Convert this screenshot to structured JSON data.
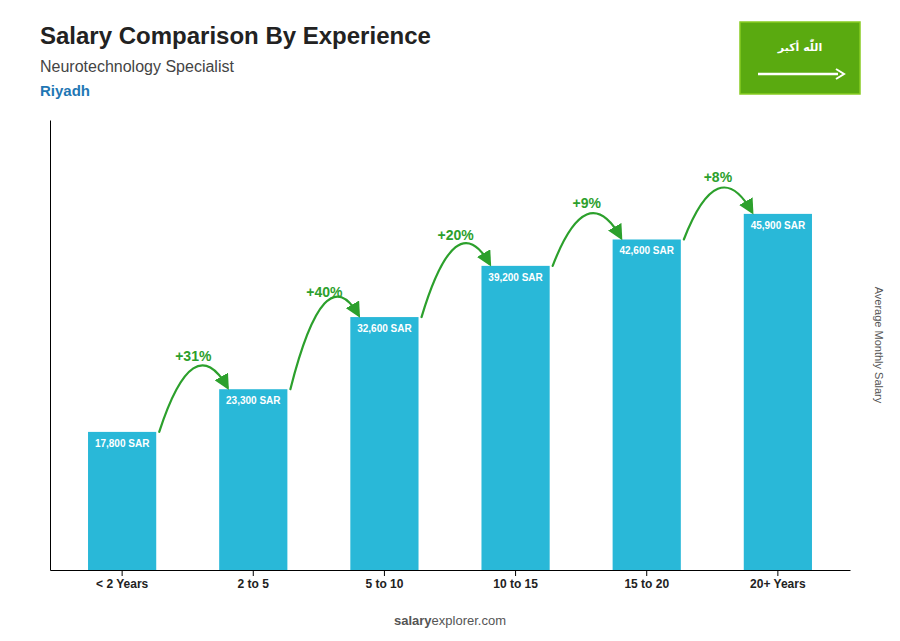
{
  "chart_data": {
    "type": "bar",
    "title": "Salary Comparison By Experience",
    "subtitle": "Neurotechnology Specialist",
    "city": "Riyadh",
    "ylabel": "Average Monthly Salary",
    "footer_bold": "salary",
    "footer_normal": "explorer.com",
    "flag_text": "اللّٰه أكبر",
    "categories": [
      "< 2 Years",
      "2 to 5",
      "5 to 10",
      "10 to 15",
      "15 to 20",
      "20+ Years"
    ],
    "values": [
      17800,
      23300,
      32600,
      39200,
      42600,
      45900
    ],
    "value_labels": [
      "17,800 SAR",
      "23,300 SAR",
      "32,600 SAR",
      "39,200 SAR",
      "42,600 SAR",
      "45,900 SAR"
    ],
    "data_labels": true,
    "pct_changes": [
      "+31%",
      "+40%",
      "+20%",
      "+9%",
      "+8%"
    ],
    "color": "#29b8d8",
    "ylim": [
      0,
      58000
    ],
    "tick_labels": "x"
  }
}
